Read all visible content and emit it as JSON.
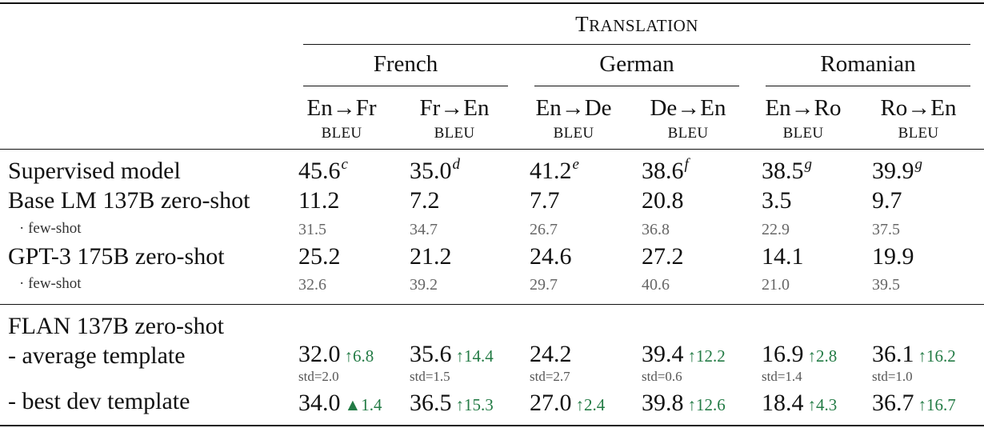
{
  "header": {
    "group": "Translation",
    "languages": [
      {
        "name": "French",
        "cols": [
          {
            "dir": "En→Fr",
            "metric": "BLEU"
          },
          {
            "dir": "Fr→En",
            "metric": "BLEU"
          }
        ]
      },
      {
        "name": "German",
        "cols": [
          {
            "dir": "En→De",
            "metric": "BLEU"
          },
          {
            "dir": "De→En",
            "metric": "BLEU"
          }
        ]
      },
      {
        "name": "Romanian",
        "cols": [
          {
            "dir": "En→Ro",
            "metric": "BLEU"
          },
          {
            "dir": "Ro→En",
            "metric": "BLEU"
          }
        ]
      }
    ]
  },
  "rows": [
    {
      "label": "Supervised model",
      "cells": [
        {
          "v": "45.6",
          "sup": "c"
        },
        {
          "v": "35.0",
          "sup": "d"
        },
        {
          "v": "41.2",
          "sup": "e"
        },
        {
          "v": "38.6",
          "sup": "f"
        },
        {
          "v": "38.5",
          "sup": "g"
        },
        {
          "v": "39.9",
          "sup": "g"
        }
      ]
    },
    {
      "label": "Base LM 137B zero-shot",
      "cells": [
        {
          "v": "11.2"
        },
        {
          "v": "7.2"
        },
        {
          "v": "7.7"
        },
        {
          "v": "20.8"
        },
        {
          "v": "3.5"
        },
        {
          "v": "9.7"
        }
      ]
    },
    {
      "label": "· few-shot",
      "cells": [
        {
          "v": "31.5"
        },
        {
          "v": "34.7"
        },
        {
          "v": "26.7"
        },
        {
          "v": "36.8"
        },
        {
          "v": "22.9"
        },
        {
          "v": "37.5"
        }
      ]
    },
    {
      "label": "GPT-3 175B zero-shot",
      "cells": [
        {
          "v": "25.2"
        },
        {
          "v": "21.2"
        },
        {
          "v": "24.6"
        },
        {
          "v": "27.2"
        },
        {
          "v": "14.1"
        },
        {
          "v": "19.9"
        }
      ]
    },
    {
      "label": "· few-shot",
      "cells": [
        {
          "v": "32.6"
        },
        {
          "v": "39.2"
        },
        {
          "v": "29.7"
        },
        {
          "v": "40.6"
        },
        {
          "v": "21.0"
        },
        {
          "v": "39.5"
        }
      ]
    }
  ],
  "flan": {
    "label": "FLAN 137B zero-shot",
    "rows": [
      {
        "label": "- average template",
        "cells": [
          {
            "v": "32.0",
            "d": "↑6.8",
            "std": "std=2.0"
          },
          {
            "v": "35.6",
            "d": "↑14.4",
            "std": "std=1.5"
          },
          {
            "v": "24.2",
            "d": "",
            "std": "std=2.7"
          },
          {
            "v": "39.4",
            "d": "↑12.2",
            "std": "std=0.6"
          },
          {
            "v": "16.9",
            "d": "↑2.8",
            "std": "std=1.4"
          },
          {
            "v": "36.1",
            "d": "↑16.2",
            "std": "std=1.0"
          }
        ]
      },
      {
        "label": "- best dev template",
        "cells": [
          {
            "v": "34.0",
            "d": "▲1.4"
          },
          {
            "v": "36.5",
            "d": "↑15.3"
          },
          {
            "v": "27.0",
            "d": "↑2.4"
          },
          {
            "v": "39.8",
            "d": "↑12.6"
          },
          {
            "v": "18.4",
            "d": "↑4.3"
          },
          {
            "v": "36.7",
            "d": "↑16.7"
          }
        ]
      }
    ]
  },
  "colors": {
    "delta": "#237b45",
    "rule": "#111111",
    "muted": "#666666"
  }
}
